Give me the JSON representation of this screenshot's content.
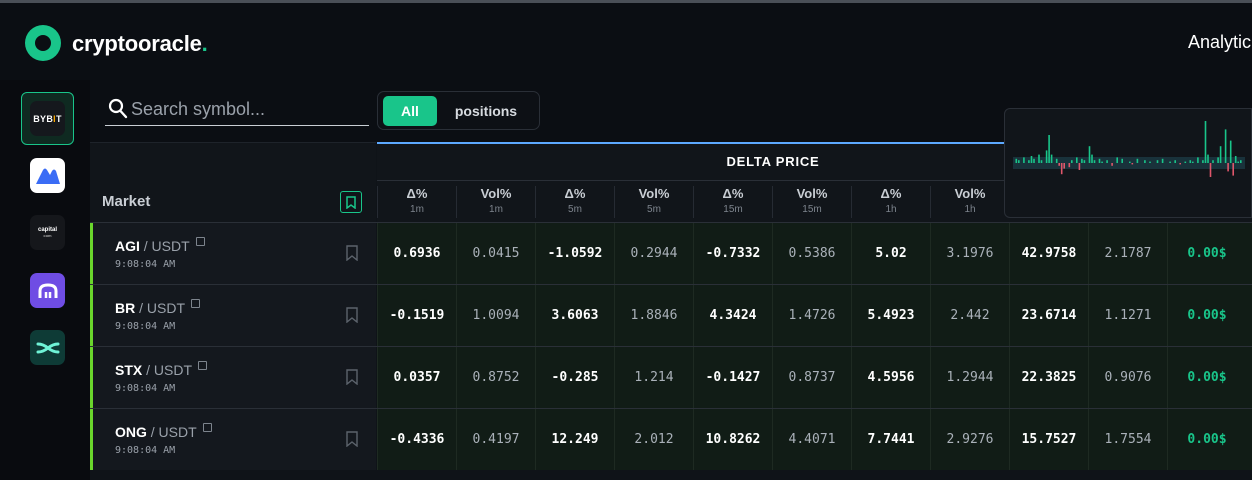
{
  "header": {
    "brand_name": "cryptooracle",
    "brand_dot": ".",
    "nav_analytics": "Analytic"
  },
  "sidebar": {
    "exchanges": [
      {
        "name": "bybit",
        "label_a": "BYB",
        "label_b": "I",
        "label_c": "T",
        "active": true
      },
      {
        "name": "coinex",
        "icon": "coinex-icon"
      },
      {
        "name": "capital",
        "label": "capital",
        "sub": "com"
      },
      {
        "name": "kucoin",
        "icon": "kucoin-icon"
      },
      {
        "name": "woo",
        "icon": "woo-icon"
      }
    ]
  },
  "search": {
    "placeholder": "Search symbol..."
  },
  "filter": {
    "all_label": "All",
    "positions_label": "positions",
    "selected": "All"
  },
  "table": {
    "market_label": "Market",
    "group_title": "DELTA PRICE",
    "columns": [
      {
        "title": "Δ%",
        "sub": "1m"
      },
      {
        "title": "Vol%",
        "sub": "1m"
      },
      {
        "title": "Δ%",
        "sub": "5m"
      },
      {
        "title": "Vol%",
        "sub": "5m"
      },
      {
        "title": "Δ%",
        "sub": "15m"
      },
      {
        "title": "Vol%",
        "sub": "15m"
      },
      {
        "title": "Δ%",
        "sub": "1h"
      },
      {
        "title": "Vol%",
        "sub": "1h"
      }
    ],
    "rows": [
      {
        "symbol": "AGI",
        "quote": " / USDT",
        "time": "9:08:04 AM",
        "values": [
          "0.6936",
          "0.0415",
          "-1.0592",
          "0.2944",
          "-0.7332",
          "0.5386",
          "5.02",
          "3.1976",
          "42.9758",
          "2.1787",
          "0.00$"
        ]
      },
      {
        "symbol": "BR",
        "quote": " / USDT",
        "time": "9:08:04 AM",
        "values": [
          "-0.1519",
          "1.0094",
          "3.6063",
          "1.8846",
          "4.3424",
          "1.4726",
          "5.4923",
          "2.442",
          "23.6714",
          "1.1271",
          "0.00$"
        ]
      },
      {
        "symbol": "STX",
        "quote": " / USDT",
        "time": "9:08:04 AM",
        "values": [
          "0.0357",
          "0.8752",
          "-0.285",
          "1.214",
          "-0.1427",
          "0.8737",
          "4.5956",
          "1.2944",
          "22.3825",
          "0.9076",
          "0.00$"
        ]
      },
      {
        "symbol": "ONG",
        "quote": " / USDT",
        "time": "9:08:04 AM",
        "values": [
          "-0.4336",
          "0.4197",
          "12.249",
          "2.012",
          "10.8262",
          "4.4071",
          "7.7441",
          "2.9276",
          "15.7527",
          "1.7554",
          "0.00$"
        ]
      }
    ]
  },
  "sparkline": {
    "up_color": "#19c58a",
    "down_color": "#e0566b",
    "values": [
      0,
      3,
      2,
      0,
      4,
      0,
      2,
      5,
      3,
      0,
      6,
      2,
      0,
      9,
      20,
      6,
      0,
      3,
      -2,
      -8,
      -4,
      0,
      -3,
      2,
      0,
      4,
      -5,
      3,
      2,
      0,
      12,
      6,
      2,
      0,
      3,
      1,
      0,
      2,
      0,
      -2,
      0,
      4,
      0,
      3,
      0,
      0,
      1,
      -1,
      0,
      3,
      0,
      0,
      2,
      0,
      1,
      0,
      0,
      2,
      0,
      3,
      0,
      0,
      1,
      0,
      2,
      0,
      -1,
      0,
      1,
      0,
      2,
      1,
      0,
      4,
      0,
      2,
      30,
      6,
      -10,
      2,
      0,
      4,
      12,
      0,
      24,
      -6,
      16,
      -9,
      5,
      1,
      2,
      0
    ]
  }
}
